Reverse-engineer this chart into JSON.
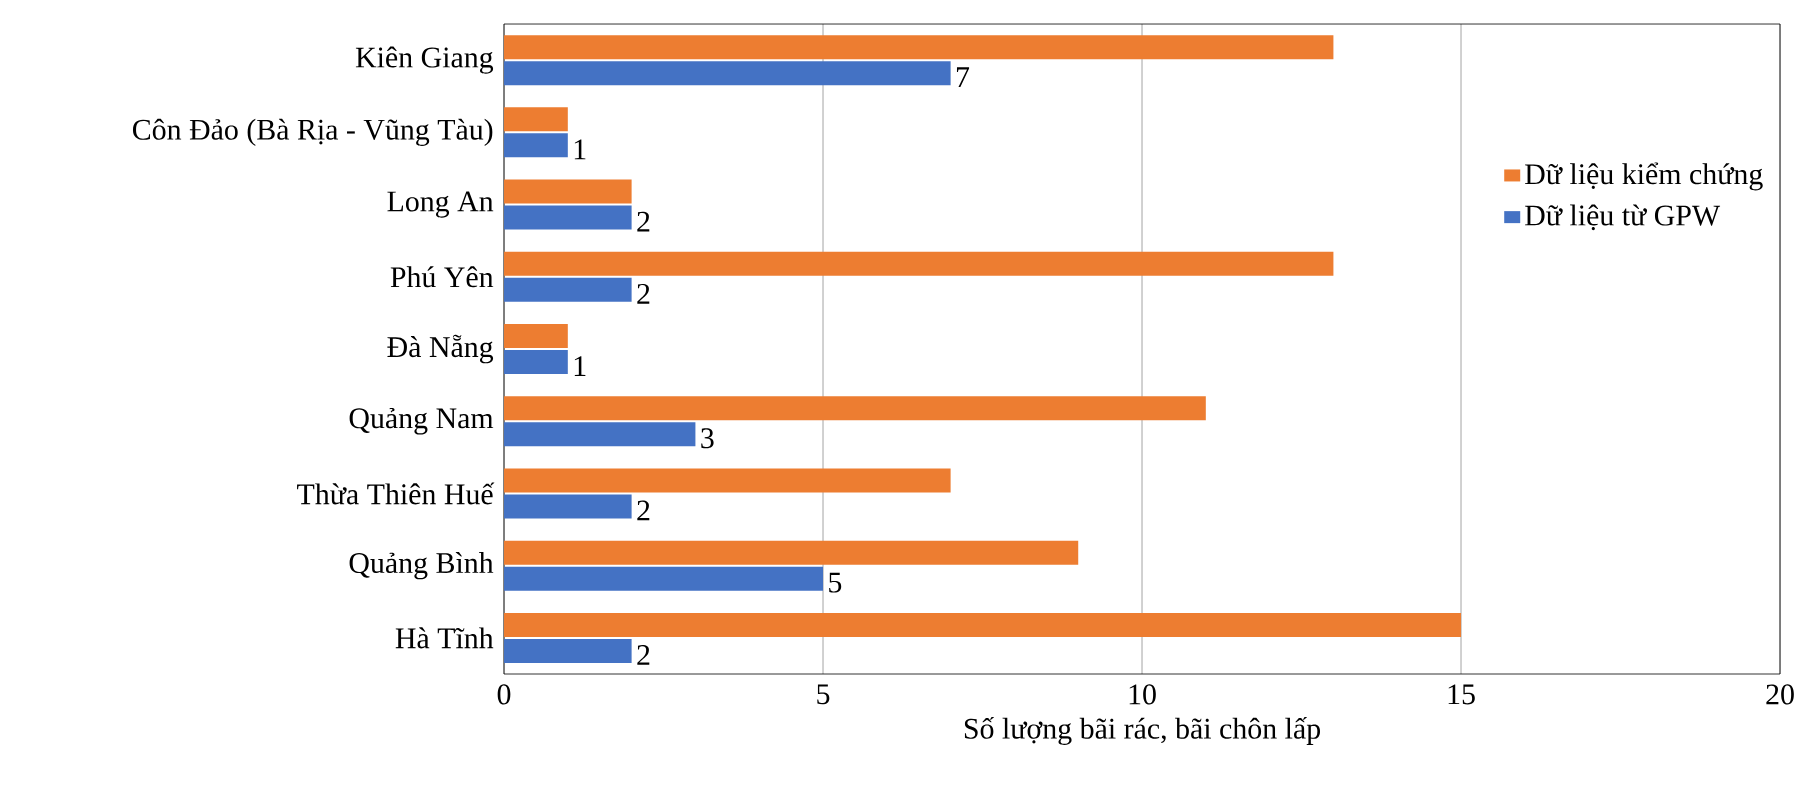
{
  "chart_data": {
    "type": "bar",
    "orientation": "horizontal",
    "xlabel": "Số lượng bãi rác, bãi chôn lấp",
    "categories": [
      "Kiên Giang",
      "Côn Đảo (Bà Rịa - Vũng Tàu)",
      "Long An",
      "Phú Yên",
      "Đà Nẵng",
      "Quảng Nam",
      "Thừa Thiên Huế",
      "Quảng Bình",
      "Hà Tĩnh"
    ],
    "series": [
      {
        "name": "Dữ liệu kiểm chứng",
        "color": "#ed7d31",
        "values": [
          13,
          1,
          2,
          13,
          1,
          11,
          7,
          9,
          15
        ]
      },
      {
        "name": "Dữ liệu từ GPW",
        "color": "#4472c4",
        "values": [
          7,
          1,
          2,
          2,
          1,
          3,
          2,
          5,
          2
        ],
        "value_labels": [
          "7",
          "1",
          "2",
          "2",
          "1",
          "3",
          "2",
          "5",
          "2"
        ]
      }
    ],
    "xlim": [
      0,
      20
    ],
    "xticks": [
      0,
      5,
      10,
      15,
      20
    ],
    "grid": "x",
    "legend": "right"
  }
}
